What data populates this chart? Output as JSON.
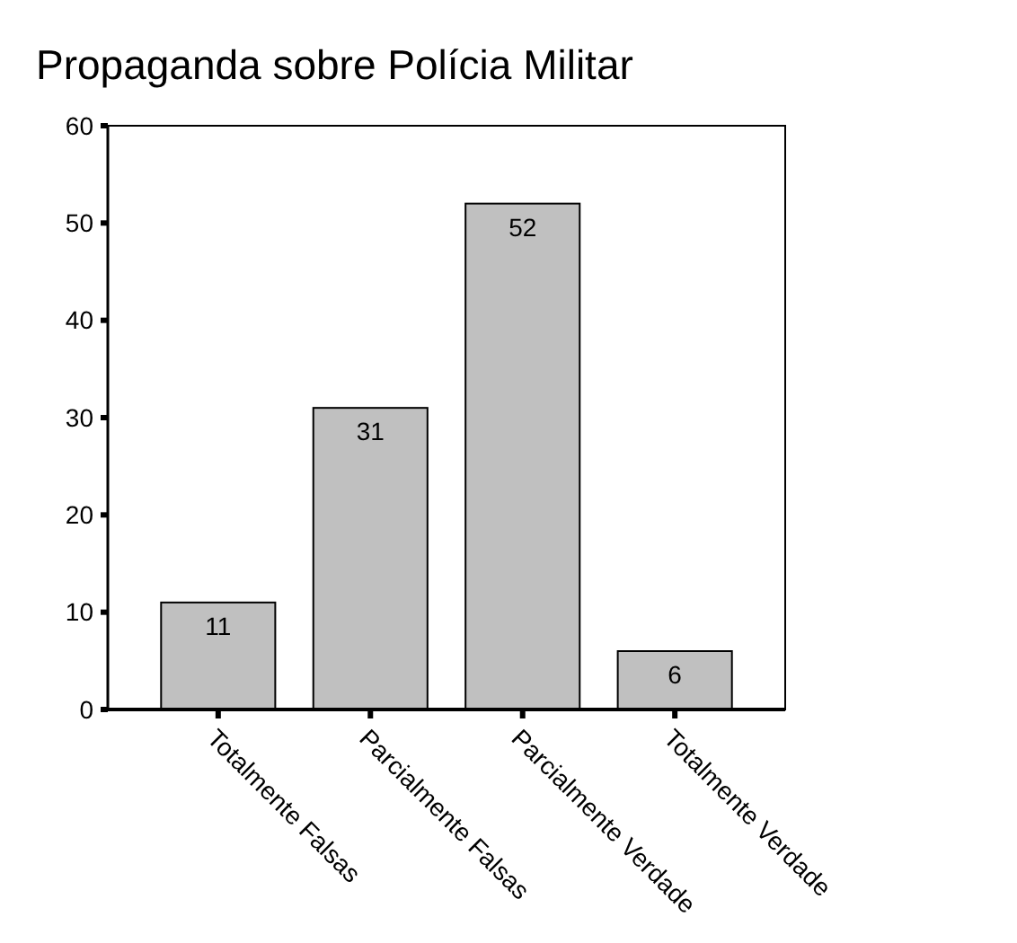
{
  "chart_data": {
    "type": "bar",
    "title": "Propaganda sobre Polícia Militar",
    "categories": [
      "Totalmente Falsas",
      "Parcialmente Falsas",
      "Parcialmente Verdade",
      "Totalmente Verdade"
    ],
    "values": [
      11,
      31,
      52,
      6
    ],
    "color": "#c0c0c0",
    "ylim": [
      0,
      60
    ],
    "yticks": [
      0,
      10,
      20,
      30,
      40,
      50,
      60
    ],
    "grid": false,
    "data_labels": true
  }
}
